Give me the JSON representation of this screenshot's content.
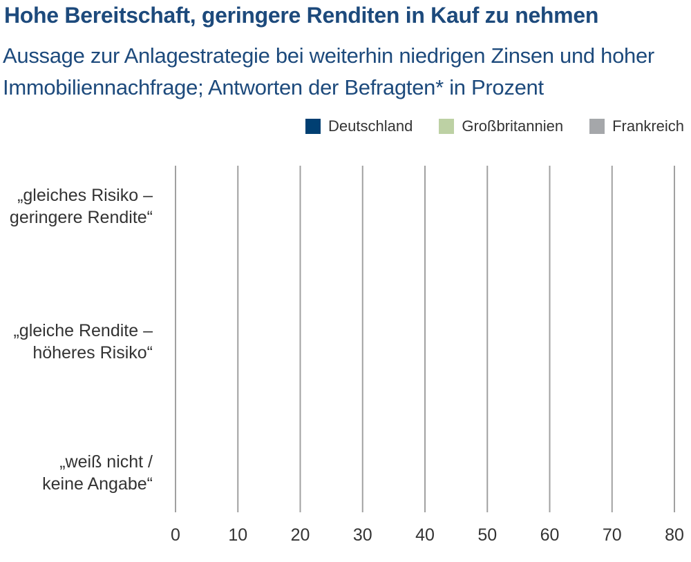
{
  "chart_data": {
    "type": "bar",
    "orientation": "horizontal",
    "title": "Hohe Bereitschaft, geringere Renditen in Kauf zu nehmen",
    "subtitle": "Aussage zur Anlagestrategie bei weiterhin niedrigen Zinsen und hoher Immobiliennachfrage; Antworten der Befragten* in Prozent",
    "categories": [
      [
        "„gleiches Risiko –",
        "geringere Rendite“"
      ],
      [
        "„gleiche Rendite –",
        "höheres Risiko“"
      ],
      [
        "„weiß nicht /",
        "keine Angabe“"
      ]
    ],
    "series": [
      {
        "name": "Deutschland",
        "color": "#003f72",
        "values": [
          null,
          null,
          null
        ]
      },
      {
        "name": "Großbritannien",
        "color": "#bdd1a4",
        "values": [
          null,
          null,
          null
        ]
      },
      {
        "name": "Frankreich",
        "color": "#a5a7aa",
        "values": [
          null,
          null,
          null
        ]
      }
    ],
    "xlim": [
      0,
      80
    ],
    "xticks": [
      "0",
      "10",
      "20",
      "30",
      "40",
      "50",
      "60",
      "70",
      "80"
    ],
    "grid": true,
    "gridline_color": "#a0a0a0",
    "legend_position": "top-right"
  }
}
